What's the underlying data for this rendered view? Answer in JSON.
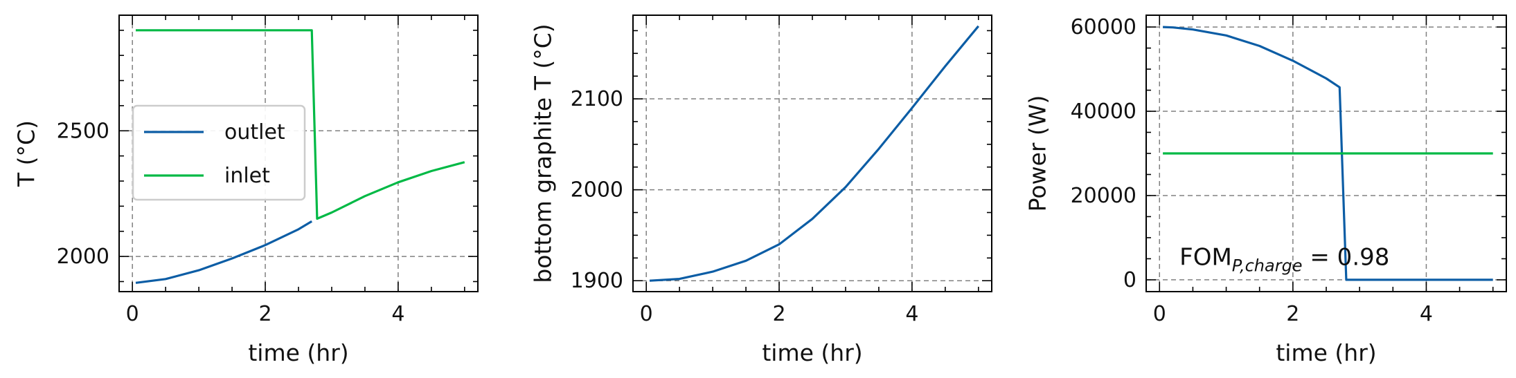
{
  "colors": {
    "outlet": "#0c5da5",
    "inlet": "#00b945",
    "grid": "#808080",
    "axis": "#000000"
  },
  "chart_data": [
    {
      "type": "line",
      "xlabel": "time (hr)",
      "ylabel": "T (°C)",
      "xlim": [
        -0.2,
        5.2
      ],
      "ylim": [
        1860,
        2960
      ],
      "xticks": [
        0,
        2,
        4
      ],
      "yticks": [
        2000,
        2500
      ],
      "grid": true,
      "legend": "center-left",
      "series": [
        {
          "name": "outlet",
          "color": "#0c5da5",
          "x": [
            0.05,
            0.5,
            1.0,
            1.5,
            2.0,
            2.5,
            2.7
          ],
          "y": [
            1895,
            1910,
            1945,
            1992,
            2045,
            2108,
            2140
          ]
        },
        {
          "name": "inlet",
          "color": "#00b945",
          "x": [
            0.05,
            2.7,
            2.78,
            3.0,
            3.5,
            4.0,
            4.5,
            5.0
          ],
          "y": [
            2900,
            2900,
            2150,
            2175,
            2240,
            2295,
            2340,
            2375
          ]
        }
      ]
    },
    {
      "type": "line",
      "xlabel": "time (hr)",
      "ylabel": "bottom graphite T (°C)",
      "xlim": [
        -0.2,
        5.2
      ],
      "ylim": [
        1888,
        2192
      ],
      "xticks": [
        0,
        2,
        4
      ],
      "yticks": [
        1900,
        2000,
        2100
      ],
      "grid": true,
      "series": [
        {
          "color": "#0c5da5",
          "x": [
            0.05,
            0.5,
            1.0,
            1.5,
            2.0,
            2.5,
            3.0,
            3.5,
            4.0,
            4.5,
            5.0
          ],
          "y": [
            1900,
            1902,
            1910,
            1922,
            1940,
            1968,
            2003,
            2045,
            2090,
            2136,
            2180
          ]
        }
      ]
    },
    {
      "type": "line",
      "xlabel": "time (hr)",
      "ylabel": "Power (W)",
      "xlim": [
        -0.2,
        5.2
      ],
      "ylim": [
        -2800,
        62800
      ],
      "xticks": [
        0,
        2,
        4
      ],
      "yticks": [
        0,
        20000,
        40000,
        60000
      ],
      "grid": true,
      "annotation": {
        "text": "FOM",
        "subscript": "P,charge",
        "suffix": " = 0.98",
        "x": 0.3,
        "y": 5500
      },
      "series": [
        {
          "color": "#0c5da5",
          "x": [
            0.05,
            0.2,
            0.5,
            1.0,
            1.5,
            2.0,
            2.5,
            2.7,
            2.8,
            3.0,
            4.0,
            5.0
          ],
          "y": [
            60000,
            59900,
            59400,
            58000,
            55500,
            52000,
            47800,
            45700,
            0,
            0,
            0,
            0
          ]
        },
        {
          "color": "#00b945",
          "x": [
            0.05,
            5.0
          ],
          "y": [
            30000,
            30000
          ]
        }
      ]
    }
  ]
}
